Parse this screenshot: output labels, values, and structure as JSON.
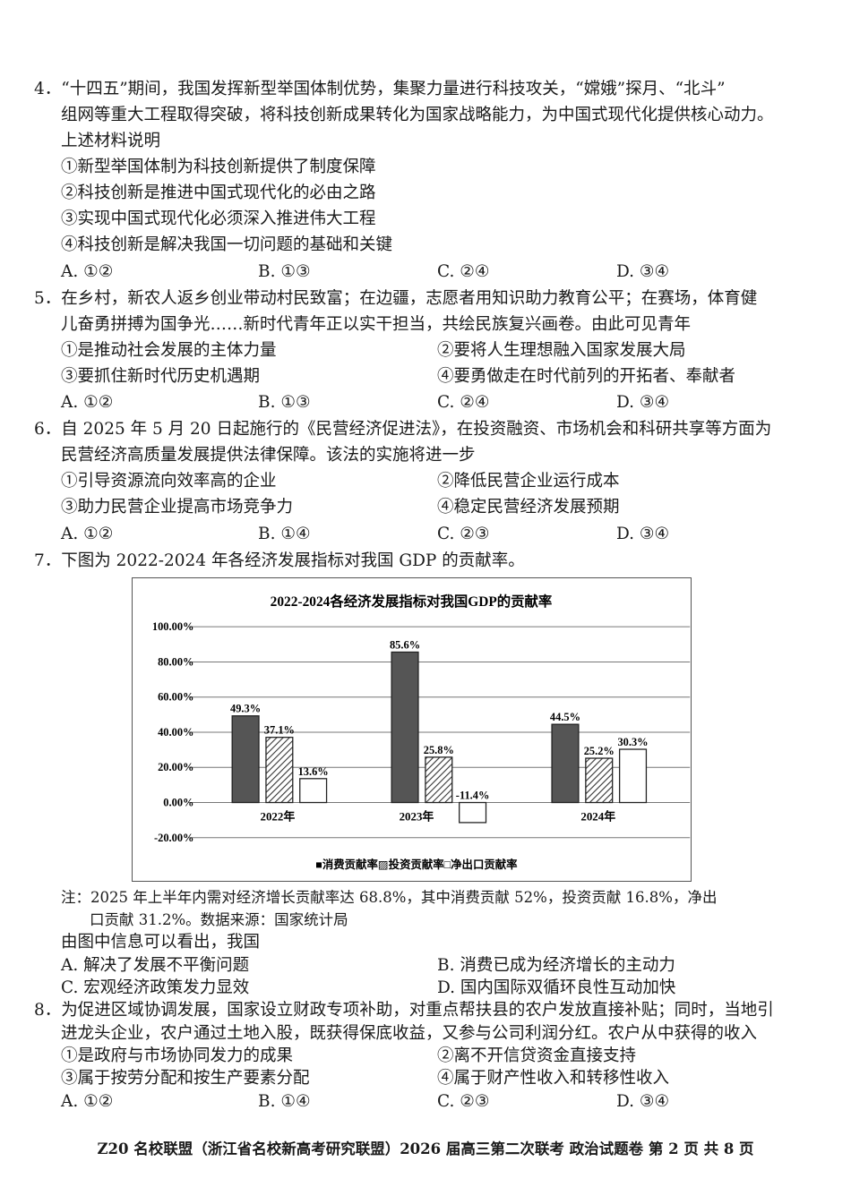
{
  "q4": {
    "stem": [
      "4．“十四五”期间，我国发挥新型举国体制优势，集聚力量进行科技攻关，“嫦娥”探月、“北斗”",
      "组网等重大工程取得突破，将科技创新成果转化为国家战略能力，为中国式现代化提供核心动力。",
      "上述材料说明"
    ],
    "statements": [
      "①新型举国体制为科技创新提供了制度保障",
      "②科技创新是推进中国式现代化的必由之路",
      "③实现中国式现代化必须深入推进伟大工程",
      "④科技创新是解决我国一切问题的基础和关键"
    ],
    "choices": [
      "A. ①②",
      "B. ①③",
      "C. ②④",
      "D. ③④"
    ]
  },
  "q5": {
    "stem": [
      "5．在乡村，新农人返乡创业带动村民致富；在边疆，志愿者用知识助力教育公平；在赛场，体育健",
      "儿奋勇拼搏为国争光……新时代青年正以实干担当，共绘民族复兴画卷。由此可见青年"
    ],
    "statements": [
      "①是推动社会发展的主体力量",
      "②要将人生理想融入国家发展大局",
      "③要抓住新时代历史机遇期",
      "④要勇做走在时代前列的开拓者、奉献者"
    ],
    "choices": [
      "A. ①②",
      "B. ①③",
      "C. ②④",
      "D. ③④"
    ]
  },
  "q6": {
    "stem": [
      "6．自 2025 年 5 月 20 日起施行的《民营经济促进法》，在投资融资、市场机会和科研共享等方面为",
      "民营经济高质量发展提供法律保障。该法的实施将进一步"
    ],
    "statements": [
      "①引导资源流向效率高的企业",
      "②降低民营企业运行成本",
      "③助力民营企业提高市场竞争力",
      "④稳定民营经济发展预期"
    ],
    "choices": [
      "A. ①②",
      "B. ①④",
      "C. ②③",
      "D. ③④"
    ]
  },
  "q7": {
    "stem": [
      "7．下图为 2022-2024 年各经济发展指标对我国 GDP 的贡献率。"
    ],
    "note": [
      "注：2025 年上半年内需对经济增长贡献率达 68.8%，其中消费贡献 52%，投资贡献 16.8%，净出",
      "口贡献 31.2%。数据来源：国家统计局"
    ],
    "question": "由图中信息可以看出，我国",
    "choices": [
      "A. 解决了发展不平衡问题",
      "B. 消费已成为经济增长的主动力",
      "C. 宏观经济政策发力显效",
      "D. 国内国际双循环良性互动加快"
    ]
  },
  "q8": {
    "stem": [
      "8．为促进区域协调发展，国家设立财政专项补助，对重点帮扶县的农户发放直接补贴；同时，当地引",
      "进龙头企业，农户通过土地入股，既获得保底收益，又参与公司利润分红。农户从中获得的收入"
    ],
    "statements": [
      "①是政府与市场协同发力的成果",
      "②离不开信贷资金直接支持",
      "③属于按劳分配和按生产要素分配",
      "④属于财产性收入和转移性收入"
    ],
    "choices": [
      "A. ①②",
      "B. ①④",
      "C. ②③",
      "D. ③④"
    ]
  },
  "footer": "Z20 名校联盟（浙江省名校新高考研究联盟）2026 届高三第二次联考 政治试题卷  第 2 页  共 8 页",
  "chart_data": {
    "type": "bar",
    "title": "2022-2024各经济发展指标对我国GDP的贡献率",
    "categories": [
      "2022年",
      "2023年",
      "2024年"
    ],
    "series": [
      {
        "name": "消费贡献率",
        "values": [
          49.3,
          85.6,
          44.5
        ],
        "style": "dark-gray-fill",
        "color": "#555555"
      },
      {
        "name": "投资贡献率",
        "values": [
          37.1,
          25.8,
          25.2
        ],
        "style": "hatched"
      },
      {
        "name": "净出口贡献率",
        "values": [
          13.6,
          -11.4,
          30.3
        ],
        "style": "white-fill"
      }
    ],
    "data_labels": [
      [
        "49.3%",
        "37.1%",
        "13.6%"
      ],
      [
        "85.6%",
        "25.8%",
        "-11.4%"
      ],
      [
        "44.5%",
        "25.2%",
        "30.3%"
      ]
    ],
    "yticks": [
      "100.00%",
      "80.00%",
      "60.00%",
      "40.00%",
      "20.00%",
      "0.00%",
      "-20.00%"
    ],
    "ylim": [
      -20,
      100
    ],
    "grid": true,
    "legend": "bottom",
    "legend_text": "■消费贡献率▨投资贡献率□净出口贡献率"
  }
}
